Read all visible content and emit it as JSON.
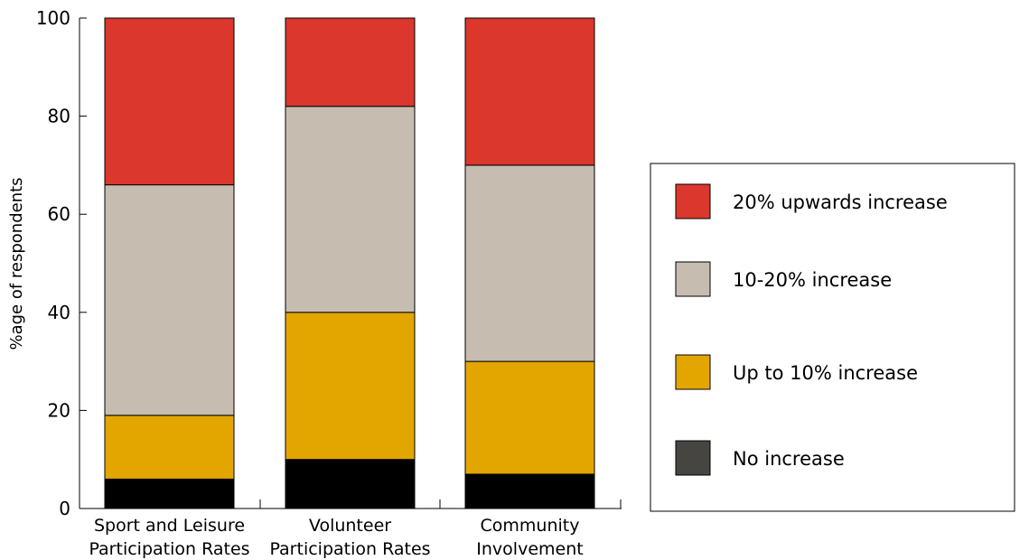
{
  "chart_data": {
    "type": "bar",
    "stacked": true,
    "ylabel": "%age of respondents",
    "xlabel": "",
    "ylim": [
      0,
      100
    ],
    "yticks": [
      0,
      20,
      40,
      60,
      80,
      100
    ],
    "categories": [
      [
        "Sport and Leisure",
        "Participation Rates"
      ],
      [
        "Volunteer",
        "Participation Rates"
      ],
      [
        "Community",
        "Involvement"
      ]
    ],
    "series": [
      {
        "name": "No increase",
        "color": "#000000",
        "values": [
          6,
          10,
          7
        ]
      },
      {
        "name": "Up to 10% increase",
        "color": "#e3a600",
        "values": [
          13,
          30,
          23
        ]
      },
      {
        "name": "10-20% increase",
        "color": "#c6bdb0",
        "values": [
          47,
          42,
          40
        ]
      },
      {
        "name": "20% upwards increase",
        "color": "#db372d",
        "values": [
          34,
          18,
          30
        ]
      }
    ],
    "legend": {
      "placement": "right",
      "order": [
        "20% upwards increase",
        "10-20% increase",
        "Up to 10% increase",
        "No increase"
      ],
      "swatch_colors": {
        "20% upwards increase": "#db372d",
        "10-20% increase": "#c6bdb0",
        "Up to 10% increase": "#e3a600",
        "No increase": "#474541"
      }
    },
    "grid": false
  }
}
